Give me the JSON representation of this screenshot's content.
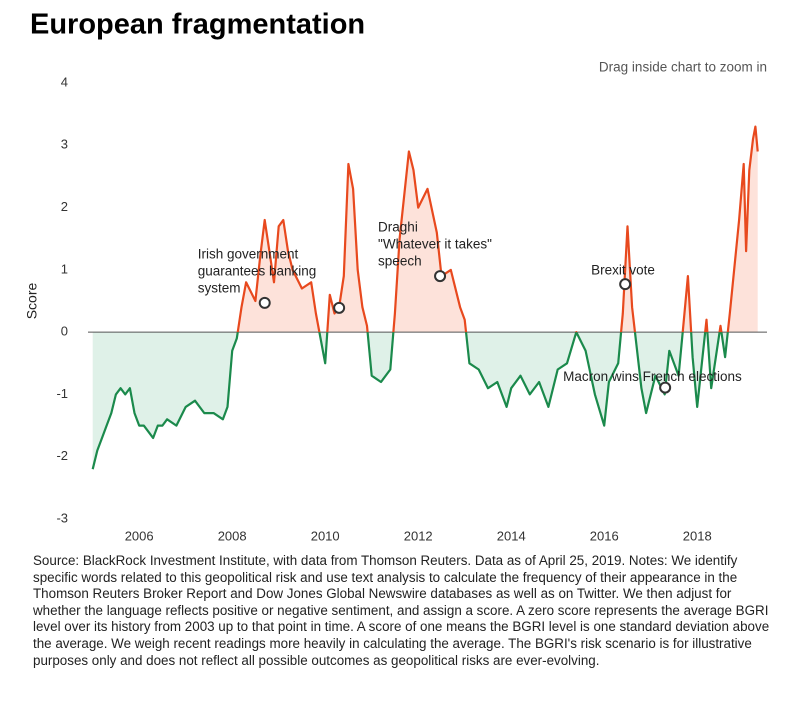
{
  "chart_data": {
    "type": "line",
    "title": "European fragmentation",
    "hint": "Drag inside chart to zoom in",
    "y_label": "Score",
    "xlim": [
      2004.9,
      2019.5
    ],
    "xticks": [
      2006,
      2008,
      2010,
      2012,
      2014,
      2016,
      2018
    ],
    "ylim": [
      -3,
      4
    ],
    "yticks": [
      -3,
      -2,
      -1,
      0,
      1,
      2,
      3,
      4
    ],
    "positive_color": "#e8491e",
    "negative_color": "#1b8a4c",
    "positive_fill": "#fde2da",
    "negative_fill": "#dff1e8",
    "x": [
      2005.0,
      2005.1,
      2005.2,
      2005.3,
      2005.4,
      2005.5,
      2005.6,
      2005.7,
      2005.8,
      2005.9,
      2006.0,
      2006.1,
      2006.2,
      2006.3,
      2006.4,
      2006.5,
      2006.6,
      2006.8,
      2007.0,
      2007.2,
      2007.4,
      2007.6,
      2007.8,
      2007.9,
      2008.0,
      2008.1,
      2008.2,
      2008.3,
      2008.5,
      2008.6,
      2008.7,
      2008.8,
      2008.9,
      2009.0,
      2009.1,
      2009.2,
      2009.3,
      2009.5,
      2009.7,
      2009.8,
      2010.0,
      2010.1,
      2010.2,
      2010.3,
      2010.4,
      2010.5,
      2010.6,
      2010.7,
      2010.8,
      2010.9,
      2011.0,
      2011.2,
      2011.4,
      2011.5,
      2011.6,
      2011.8,
      2011.9,
      2012.0,
      2012.2,
      2012.4,
      2012.5,
      2012.7,
      2012.9,
      2013.0,
      2013.1,
      2013.3,
      2013.5,
      2013.7,
      2013.9,
      2014.0,
      2014.2,
      2014.4,
      2014.6,
      2014.8,
      2015.0,
      2015.2,
      2015.4,
      2015.6,
      2015.8,
      2016.0,
      2016.1,
      2016.3,
      2016.4,
      2016.5,
      2016.6,
      2016.8,
      2016.9,
      2017.1,
      2017.3,
      2017.4,
      2017.6,
      2017.7,
      2017.8,
      2017.9,
      2018.0,
      2018.2,
      2018.3,
      2018.5,
      2018.6,
      2018.7,
      2018.9,
      2019.0,
      2019.05,
      2019.12,
      2019.2,
      2019.25,
      2019.3
    ],
    "values": [
      -2.2,
      -1.9,
      -1.7,
      -1.5,
      -1.3,
      -1.0,
      -0.9,
      -1.0,
      -0.9,
      -1.3,
      -1.5,
      -1.5,
      -1.6,
      -1.7,
      -1.5,
      -1.5,
      -1.4,
      -1.5,
      -1.2,
      -1.1,
      -1.3,
      -1.3,
      -1.4,
      -1.2,
      -0.3,
      -0.1,
      0.4,
      0.8,
      0.5,
      1.2,
      1.8,
      1.3,
      0.8,
      1.7,
      1.8,
      1.3,
      1.0,
      0.7,
      0.8,
      0.3,
      -0.5,
      0.6,
      0.3,
      0.4,
      0.9,
      2.7,
      2.3,
      1.0,
      0.4,
      0.1,
      -0.7,
      -0.8,
      -0.6,
      0.3,
      1.5,
      2.9,
      2.6,
      2.0,
      2.3,
      1.6,
      0.9,
      1.0,
      0.4,
      0.2,
      -0.5,
      -0.6,
      -0.9,
      -0.8,
      -1.2,
      -0.9,
      -0.7,
      -1.0,
      -0.8,
      -1.2,
      -0.6,
      -0.5,
      0.0,
      -0.3,
      -1.0,
      -1.5,
      -0.8,
      -0.5,
      0.3,
      1.7,
      0.4,
      -0.9,
      -1.3,
      -0.7,
      -1.0,
      -0.3,
      -0.7,
      0.1,
      0.9,
      -0.4,
      -1.2,
      0.2,
      -0.9,
      0.1,
      -0.4,
      0.3,
      1.8,
      2.7,
      1.3,
      2.6,
      3.1,
      3.3,
      2.9
    ],
    "annotations": [
      {
        "x": 2008.7,
        "y": 0.47,
        "lines": [
          "Irish government",
          "guarantees banking",
          "system"
        ]
      },
      {
        "x": 2010.3,
        "y": 0.39
      },
      {
        "x": 2012.47,
        "y": 0.9,
        "lines": [
          "Draghi",
          "\"Whatever it takes\"",
          "speech"
        ]
      },
      {
        "x": 2016.45,
        "y": 0.77,
        "lines": [
          "Brexit vote"
        ]
      },
      {
        "x": 2017.31,
        "y": -0.89,
        "lines": [
          "Macron wins French elections"
        ]
      }
    ]
  },
  "source_note": "Source: BlackRock Investment Institute, with data from Thomson Reuters. Data as of April 25, 2019. Notes: We identify specific words related to this geopolitical risk and use text analysis to calculate the frequency of their appearance in the Thomson Reuters Broker Report and Dow Jones Global Newswire databases as well as on Twitter. We then adjust for whether the language reflects positive or negative sentiment, and assign a score. A zero score represents the average BGRI level over its history from 2003 up to that point in time. A score of one means the BGRI level is one standard deviation above the average. We weigh recent readings more heavily in calculating the average. The BGRI's risk scenario is for illustrative purposes only and does not reflect all possible outcomes as geopolitical risks are ever-evolving."
}
